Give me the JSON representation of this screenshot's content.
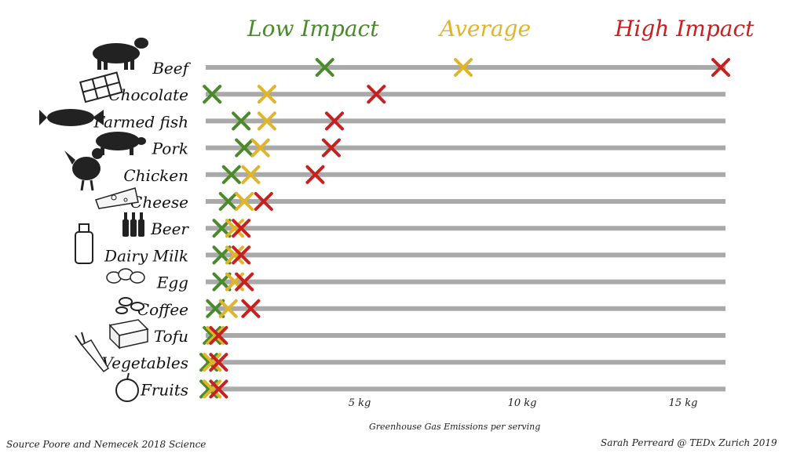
{
  "chart_data": {
    "type": "scatter",
    "title": "",
    "xlabel": "Greenhouse Gas Emissions per serving",
    "ylabel": "",
    "xlim": [
      0,
      16.5
    ],
    "x_ticks": [
      {
        "value": 5,
        "label": "5 kg"
      },
      {
        "value": 10,
        "label": "10 kg"
      },
      {
        "value": 15,
        "label": "15 kg"
      }
    ],
    "categories": [
      "Beef",
      "Chocolate",
      "Farmed fish",
      "Pork",
      "Chicken",
      "Cheese",
      "Beer",
      "Dairy Milk",
      "Egg",
      "Coffee",
      "Tofu",
      "Vegetables",
      "Fruits"
    ],
    "series": [
      {
        "name": "Low Impact",
        "color": "#4a8a2a",
        "values": [
          3.7,
          0.2,
          1.1,
          1.2,
          0.8,
          0.7,
          0.5,
          0.5,
          0.5,
          0.3,
          0.2,
          0.1,
          0.1
        ]
      },
      {
        "name": "Average",
        "color": "#e0b52a",
        "values": [
          8.0,
          1.9,
          1.9,
          1.7,
          1.4,
          1.2,
          0.9,
          0.9,
          0.9,
          0.7,
          0.3,
          0.2,
          0.2
        ]
      },
      {
        "name": "High Impact",
        "color": "#c62020",
        "values": [
          16.0,
          5.3,
          4.0,
          3.9,
          3.4,
          1.8,
          1.1,
          1.1,
          1.2,
          1.4,
          0.4,
          0.4,
          0.4
        ]
      }
    ],
    "grid": false,
    "legend": "top"
  },
  "footer": {
    "source": "Source Poore and Nemecek 2018 Science",
    "credit": "Sarah Perreard @ TEDx Zurich 2019"
  }
}
